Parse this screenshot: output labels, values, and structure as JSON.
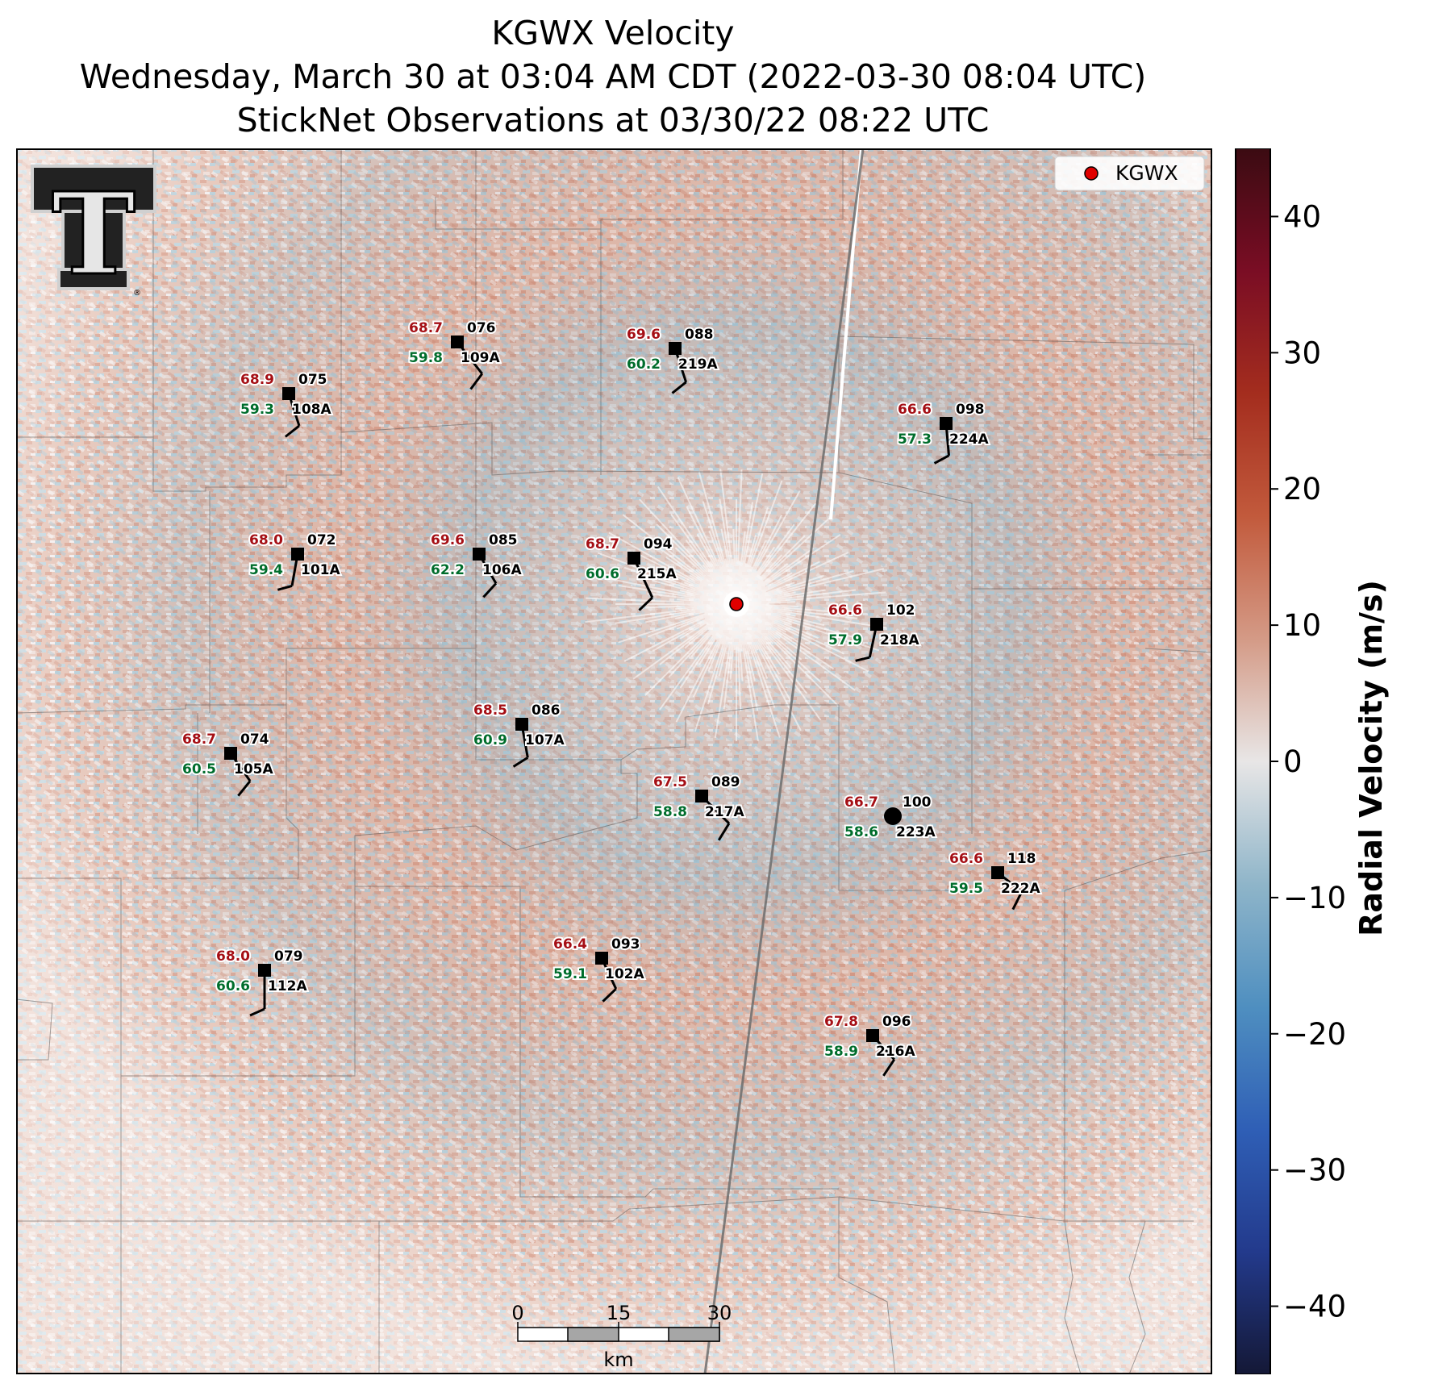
{
  "title": {
    "line1": "KGWX Velocity",
    "line2": "Wednesday, March 30 at 03:04 AM CDT (2022-03-30 08:04 UTC)",
    "line3": "StickNet Observations at 03/30/22 08:22 UTC"
  },
  "legend": {
    "label": "KGWX",
    "marker_color": "#e00000",
    "placement": "top-right"
  },
  "colorbar": {
    "label": "Radial Velocity (m/s)",
    "range": [
      -45,
      45
    ],
    "ticks": [
      "40",
      "30",
      "20",
      "10",
      "0",
      "−10",
      "−20",
      "−30",
      "−40"
    ],
    "tick_values": [
      40,
      30,
      20,
      10,
      0,
      -10,
      -20,
      -30,
      -40
    ],
    "colors": [
      "#141836",
      "#233a8c",
      "#2f5fb6",
      "#4f8fc0",
      "#8fb5c9",
      "#e8e6e6",
      "#d49a86",
      "#c25a3c",
      "#a42d1e",
      "#7a0d24",
      "#3b0b12"
    ]
  },
  "scalebar": {
    "labels": [
      "0",
      "15",
      "30"
    ],
    "unit": "km"
  },
  "logo": {
    "letter": "T",
    "mark": "®"
  },
  "colors": {
    "temperature": "#a50f15",
    "dewpoint": "#006d2c",
    "id": "#000000",
    "radar": "#e00000"
  },
  "stations": [
    {
      "id": "109A",
      "temp": "68.7",
      "dew": "59.8",
      "dir": "076"
    },
    {
      "id": "219A",
      "temp": "69.6",
      "dew": "60.2",
      "dir": "088"
    },
    {
      "id": "108A",
      "temp": "68.9",
      "dew": "59.3",
      "dir": "075"
    },
    {
      "id": "224A",
      "temp": "66.6",
      "dew": "57.3",
      "dir": "098"
    },
    {
      "id": "101A",
      "temp": "68.0",
      "dew": "59.4",
      "dir": "072"
    },
    {
      "id": "106A",
      "temp": "69.6",
      "dew": "62.2",
      "dir": "085"
    },
    {
      "id": "215A",
      "temp": "68.7",
      "dew": "60.6",
      "dir": "094"
    },
    {
      "id": "218A",
      "temp": "66.6",
      "dew": "57.9",
      "dir": "102"
    },
    {
      "id": "107A",
      "temp": "68.5",
      "dew": "60.9",
      "dir": "086"
    },
    {
      "id": "223A",
      "temp": "66.7",
      "dew": "58.6",
      "dir": "100"
    },
    {
      "id": "105A",
      "temp": "68.7",
      "dew": "60.5",
      "dir": "074"
    },
    {
      "id": "217A",
      "temp": "67.5",
      "dew": "58.8",
      "dir": "089"
    },
    {
      "id": "222A",
      "temp": "66.6",
      "dew": "59.5",
      "dir": "118"
    },
    {
      "id": "112A",
      "temp": "68.0",
      "dew": "60.6",
      "dir": "079"
    },
    {
      "id": "102A",
      "temp": "66.4",
      "dew": "59.1",
      "dir": "093"
    },
    {
      "id": "216A",
      "temp": "67.8",
      "dew": "58.9",
      "dir": "096"
    }
  ]
}
